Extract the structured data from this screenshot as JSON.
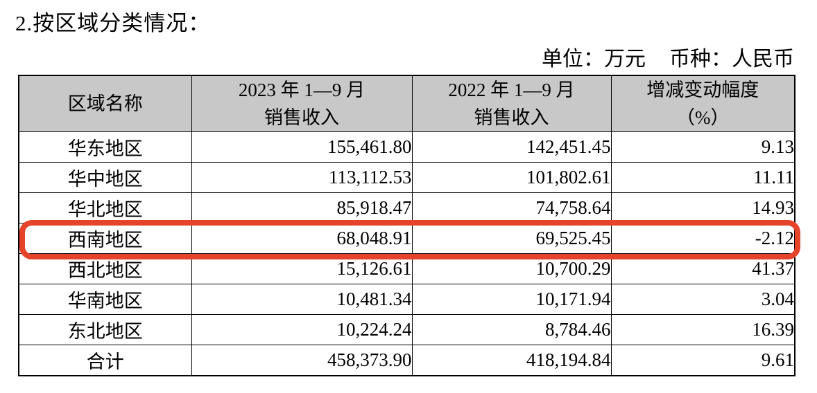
{
  "page": {
    "section_title": "2.按区域分类情况：",
    "unit_note": "单位：万元",
    "currency_note": "币种：人民币"
  },
  "table": {
    "headers": {
      "region": "区域名称",
      "col2023": {
        "line1": "2023 年 1—9 月",
        "line2": "销售收入"
      },
      "col2022": {
        "line1": "2022 年 1—9 月",
        "line2": "销售收入"
      },
      "change": {
        "line1": "增减变动幅度",
        "line2": "（%）"
      }
    },
    "rows": [
      {
        "region": "华东地区",
        "sales_2023": "155,461.80",
        "sales_2022": "142,451.45",
        "change_pct": "9.13"
      },
      {
        "region": "华中地区",
        "sales_2023": "113,112.53",
        "sales_2022": "101,802.61",
        "change_pct": "11.11"
      },
      {
        "region": "华北地区",
        "sales_2023": "85,918.47",
        "sales_2022": "74,758.64",
        "change_pct": "14.93"
      },
      {
        "region": "西南地区",
        "sales_2023": "68,048.91",
        "sales_2022": "69,525.45",
        "change_pct": "-2.12",
        "highlighted": true
      },
      {
        "region": "西北地区",
        "sales_2023": "15,126.61",
        "sales_2022": "10,700.29",
        "change_pct": "41.37"
      },
      {
        "region": "华南地区",
        "sales_2023": "10,481.34",
        "sales_2022": "10,171.94",
        "change_pct": "3.04"
      },
      {
        "region": "东北地区",
        "sales_2023": "10,224.24",
        "sales_2022": "8,784.46",
        "change_pct": "16.39"
      },
      {
        "region": "合计",
        "sales_2023": "458,373.90",
        "sales_2022": "418,194.84",
        "change_pct": "9.61",
        "is_total": true
      }
    ]
  },
  "annotation": {
    "shape": "rounded-rectangle-outline",
    "color": "#e5442a",
    "highlighted_region": "西南地区"
  },
  "colors": {
    "header_background": "#c8c8c8",
    "table_border": "#000000",
    "highlight_red": "#e5442a",
    "page_background": "#ffffff"
  }
}
